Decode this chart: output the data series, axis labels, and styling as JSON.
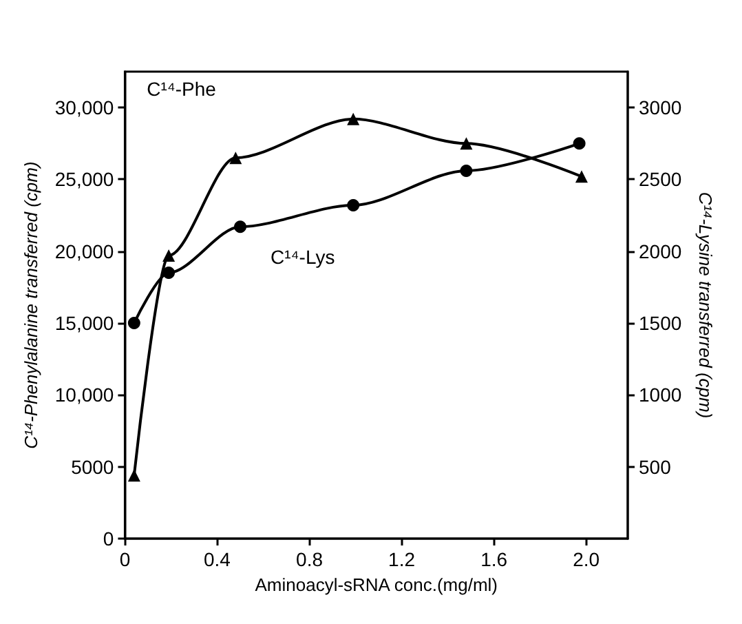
{
  "chart_data": {
    "type": "line",
    "xlabel": "Aminoacyl-sRNA conc.(mg/ml)",
    "ylabel": "C¹⁴-Phenylalanine transferred (cpm)",
    "y2label": "C¹⁴-Lysine transferred (cpm)",
    "series": [
      {
        "name": "C¹⁴-Phe",
        "color": "#000000",
        "marker": "triangle",
        "x": [
          0.04,
          0.19,
          0.48,
          0.99,
          1.48,
          1.98
        ],
        "values": [
          4400,
          19700,
          26500,
          29200,
          27500,
          25200
        ]
      },
      {
        "name": "C¹⁴-Lys",
        "color": "#000000",
        "marker": "circle",
        "axis": "y2",
        "x": [
          0.04,
          0.19,
          0.5,
          0.99,
          1.48,
          1.97
        ],
        "values": [
          1500,
          1850,
          2170,
          2320,
          2560,
          2750
        ]
      }
    ],
    "xlim": [
      0,
      2.18
    ],
    "xticks": [
      0,
      0.4,
      0.8,
      1.2,
      1.6,
      {
        "value": 2,
        "label": "2.0"
      }
    ],
    "ylim": [
      0,
      32500
    ],
    "yticks": [
      0,
      5000,
      {
        "value": 10000,
        "label": "10,000"
      },
      {
        "value": 15000,
        "label": "15,000"
      },
      {
        "value": 20000,
        "label": "20,000"
      },
      {
        "value": 25000,
        "label": "25,000"
      },
      {
        "value": 30000,
        "label": "30,000"
      }
    ],
    "y2lim": [
      0,
      3250
    ],
    "y2ticks": [
      500,
      1000,
      1500,
      2000,
      2500,
      3000
    ],
    "grid": false,
    "legend": false,
    "line_style": "solid"
  }
}
